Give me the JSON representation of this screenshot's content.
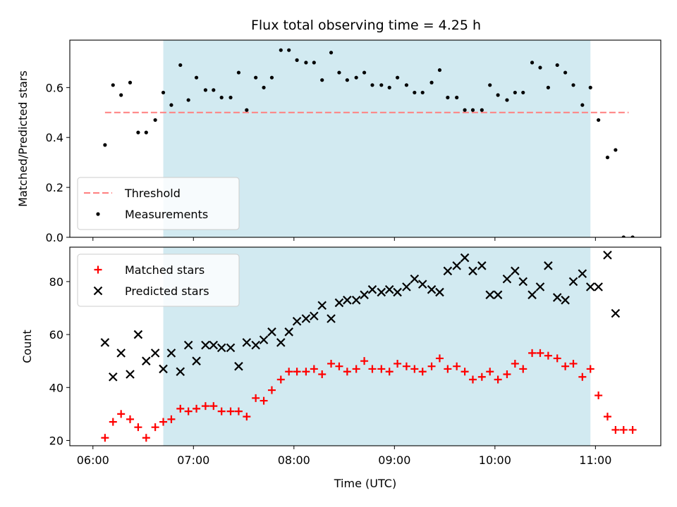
{
  "chart_data": {
    "title": "Flux total observing time = 4.25 h",
    "xlabel": "Time (UTC)",
    "x_tick_labels": [
      "06:00",
      "07:00",
      "08:00",
      "09:00",
      "10:00",
      "11:00"
    ],
    "x_tick_hours": [
      6,
      7,
      8,
      9,
      10,
      11
    ],
    "x_range_hours": [
      5.77,
      11.65
    ],
    "shaded_interval_hours": [
      6.7,
      10.95
    ],
    "colors": {
      "shade": "#add8e6",
      "threshold": "#ff7f7f",
      "measurements": "#000000",
      "matched": "#ff0000",
      "predicted": "#000000"
    },
    "panels": [
      {
        "type": "scatter",
        "ylabel": "Matched/Predicted stars",
        "ylim": [
          0,
          0.79
        ],
        "y_ticks": [
          0.0,
          0.2,
          0.4,
          0.6
        ],
        "y_tick_labels": [
          "0.0",
          "0.2",
          "0.4",
          "0.6"
        ],
        "legend_position": "lower-left",
        "threshold": {
          "name": "Threshold",
          "value": 0.5,
          "x_start": 6.12,
          "x_end": 11.33
        },
        "series": [
          {
            "name": "Measurements",
            "marker": "dot",
            "x": [
              6.12,
              6.2,
              6.28,
              6.37,
              6.45,
              6.53,
              6.62,
              6.7,
              6.78,
              6.87,
              6.95,
              7.03,
              7.12,
              7.2,
              7.28,
              7.37,
              7.45,
              7.53,
              7.62,
              7.7,
              7.78,
              7.87,
              7.95,
              8.03,
              8.12,
              8.2,
              8.28,
              8.37,
              8.45,
              8.53,
              8.62,
              8.7,
              8.78,
              8.87,
              8.95,
              9.03,
              9.12,
              9.2,
              9.28,
              9.37,
              9.45,
              9.53,
              9.62,
              9.7,
              9.78,
              9.87,
              9.95,
              10.03,
              10.12,
              10.2,
              10.28,
              10.37,
              10.45,
              10.53,
              10.62,
              10.7,
              10.78,
              10.87,
              10.95,
              11.03,
              11.12,
              11.2,
              11.28,
              11.37
            ],
            "y": [
              0.37,
              0.61,
              0.57,
              0.62,
              0.42,
              0.42,
              0.47,
              0.58,
              0.53,
              0.69,
              0.55,
              0.64,
              0.59,
              0.59,
              0.56,
              0.56,
              0.66,
              0.51,
              0.64,
              0.6,
              0.64,
              0.75,
              0.75,
              0.71,
              0.7,
              0.7,
              0.63,
              0.74,
              0.66,
              0.63,
              0.64,
              0.66,
              0.61,
              0.61,
              0.6,
              0.64,
              0.61,
              0.58,
              0.58,
              0.62,
              0.67,
              0.56,
              0.56,
              0.51,
              0.51,
              0.51,
              0.61,
              0.57,
              0.55,
              0.58,
              0.58,
              0.7,
              0.68,
              0.6,
              0.69,
              0.66,
              0.61,
              0.53,
              0.6,
              0.47,
              0.32,
              0.35,
              0.0,
              0.0
            ]
          }
        ]
      },
      {
        "type": "scatter",
        "ylabel": "Count",
        "ylim": [
          18,
          93
        ],
        "y_ticks": [
          20,
          40,
          60,
          80
        ],
        "y_tick_labels": [
          "20",
          "40",
          "60",
          "80"
        ],
        "legend_position": "upper-left",
        "series": [
          {
            "name": "Matched stars",
            "marker": "plus",
            "x": [
              6.12,
              6.2,
              6.28,
              6.37,
              6.45,
              6.53,
              6.62,
              6.7,
              6.78,
              6.87,
              6.95,
              7.03,
              7.12,
              7.2,
              7.28,
              7.37,
              7.45,
              7.53,
              7.62,
              7.7,
              7.78,
              7.87,
              7.95,
              8.03,
              8.12,
              8.2,
              8.28,
              8.37,
              8.45,
              8.53,
              8.62,
              8.7,
              8.78,
              8.87,
              8.95,
              9.03,
              9.12,
              9.2,
              9.28,
              9.37,
              9.45,
              9.53,
              9.62,
              9.7,
              9.78,
              9.87,
              9.95,
              10.03,
              10.12,
              10.2,
              10.28,
              10.37,
              10.45,
              10.53,
              10.62,
              10.7,
              10.78,
              10.87,
              10.95,
              11.03,
              11.12,
              11.2,
              11.28,
              11.37
            ],
            "y": [
              21,
              27,
              30,
              28,
              25,
              21,
              25,
              27,
              28,
              32,
              31,
              32,
              33,
              33,
              31,
              31,
              31,
              29,
              36,
              35,
              39,
              43,
              46,
              46,
              46,
              47,
              45,
              49,
              48,
              46,
              47,
              50,
              47,
              47,
              46,
              49,
              48,
              47,
              46,
              48,
              51,
              47,
              48,
              46,
              43,
              44,
              46,
              43,
              45,
              49,
              47,
              53,
              53,
              52,
              51,
              48,
              49,
              44,
              47,
              37,
              29,
              24,
              24,
              24
            ]
          },
          {
            "name": "Predicted stars",
            "marker": "x",
            "x": [
              6.12,
              6.2,
              6.28,
              6.37,
              6.45,
              6.53,
              6.62,
              6.7,
              6.78,
              6.87,
              6.95,
              7.03,
              7.12,
              7.2,
              7.28,
              7.37,
              7.45,
              7.53,
              7.62,
              7.7,
              7.78,
              7.87,
              7.95,
              8.03,
              8.12,
              8.2,
              8.28,
              8.37,
              8.45,
              8.53,
              8.62,
              8.7,
              8.78,
              8.87,
              8.95,
              9.03,
              9.12,
              9.2,
              9.28,
              9.37,
              9.45,
              9.53,
              9.62,
              9.7,
              9.78,
              9.87,
              9.95,
              10.03,
              10.12,
              10.2,
              10.28,
              10.37,
              10.45,
              10.53,
              10.62,
              10.7,
              10.78,
              10.87,
              10.95,
              11.03,
              11.12,
              11.2
            ],
            "y": [
              57,
              44,
              53,
              45,
              60,
              50,
              53,
              47,
              53,
              46,
              56,
              50,
              56,
              56,
              55,
              55,
              48,
              57,
              56,
              58,
              61,
              57,
              61,
              65,
              66,
              67,
              71,
              66,
              72,
              73,
              73,
              75,
              77,
              76,
              77,
              76,
              78,
              81,
              79,
              77,
              76,
              84,
              86,
              89,
              84,
              86,
              75,
              75,
              81,
              84,
              80,
              75,
              78,
              86,
              74,
              73,
              80,
              83,
              78,
              78,
              90,
              68
            ]
          }
        ]
      }
    ]
  }
}
